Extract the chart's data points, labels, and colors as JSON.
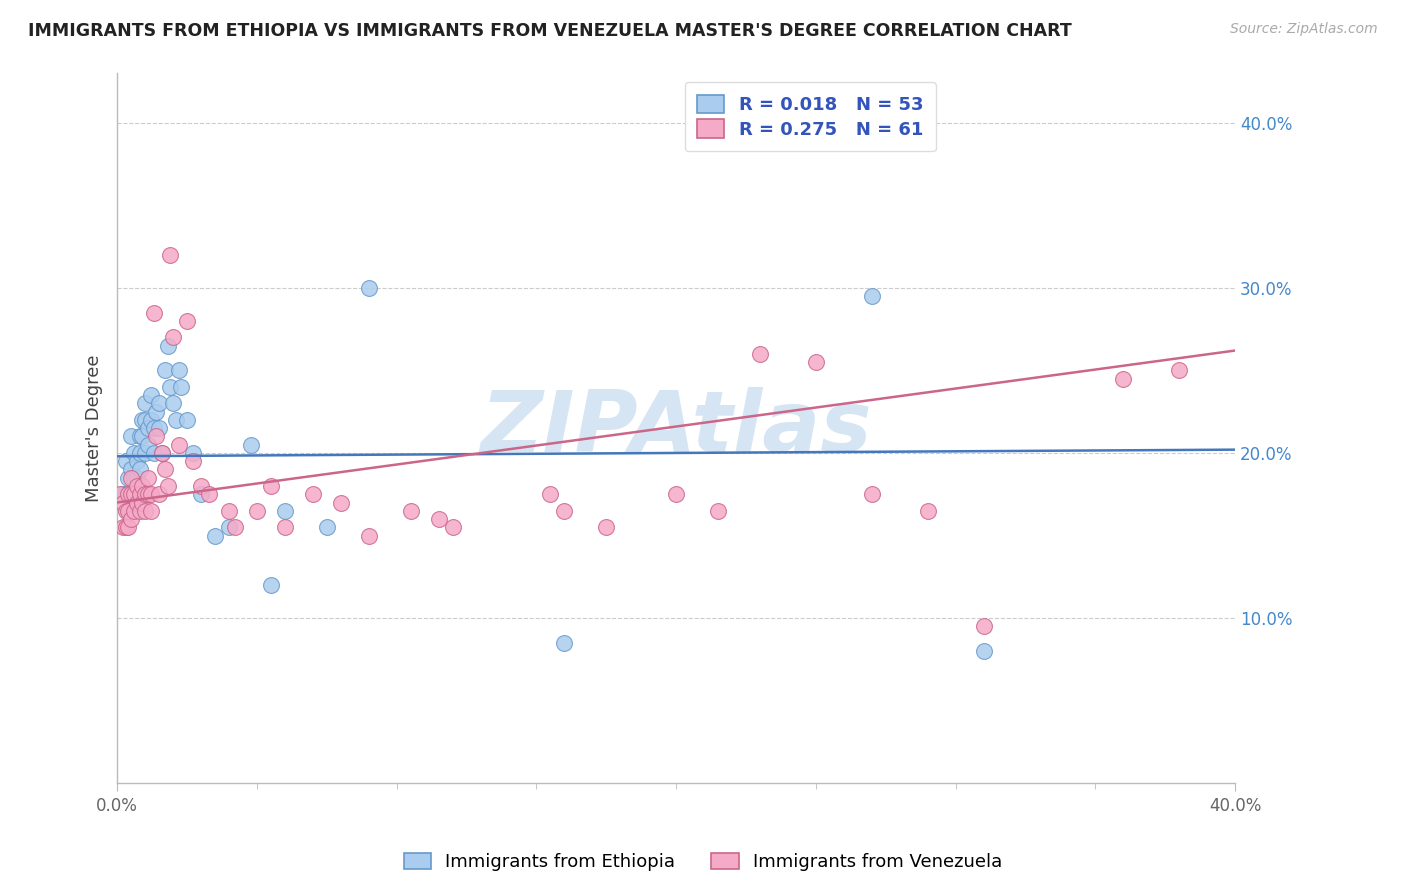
{
  "title": "IMMIGRANTS FROM ETHIOPIA VS IMMIGRANTS FROM VENEZUELA MASTER'S DEGREE CORRELATION CHART",
  "source": "Source: ZipAtlas.com",
  "ylabel": "Master's Degree",
  "xlim": [
    0.0,
    0.4
  ],
  "ylim": [
    0.0,
    0.43
  ],
  "ytick_vals": [
    0.1,
    0.2,
    0.3,
    0.4
  ],
  "ytick_labels": [
    "10.0%",
    "20.0%",
    "30.0%",
    "40.0%"
  ],
  "xtick_vals": [
    0.0,
    0.4
  ],
  "xtick_labels": [
    "0.0%",
    "40.0%"
  ],
  "legend_r1": "0.018",
  "legend_n1": "53",
  "legend_r2": "0.275",
  "legend_n2": "61",
  "label_ethiopia": "Immigrants from Ethiopia",
  "label_venezuela": "Immigrants from Venezuela",
  "color_ethiopia_fill": "#aaccee",
  "color_ethiopia_edge": "#6699cc",
  "color_venezuela_fill": "#f5aac8",
  "color_venezuela_edge": "#cc6688",
  "line_color_ethiopia": "#4477bb",
  "line_color_venezuela": "#cc6688",
  "watermark": "ZIPAtlas",
  "watermark_color": "#c8ddf0",
  "background": "#ffffff",
  "grid_color": "#cccccc",
  "title_color": "#222222",
  "source_color": "#aaaaaa",
  "legend_text_color": "#3355bb",
  "axis_label_color": "#444444",
  "tick_color_y": "#4488cc",
  "tick_color_x": "#666666",
  "eth_trendline_start_y": 0.198,
  "eth_trendline_end_y": 0.202,
  "ven_trendline_start_y": 0.17,
  "ven_trendline_end_y": 0.262,
  "eth_x": [
    0.002,
    0.003,
    0.003,
    0.004,
    0.004,
    0.004,
    0.005,
    0.005,
    0.005,
    0.006,
    0.006,
    0.006,
    0.007,
    0.007,
    0.007,
    0.008,
    0.008,
    0.008,
    0.009,
    0.009,
    0.01,
    0.01,
    0.01,
    0.011,
    0.011,
    0.012,
    0.012,
    0.013,
    0.013,
    0.014,
    0.015,
    0.015,
    0.016,
    0.017,
    0.018,
    0.019,
    0.02,
    0.021,
    0.022,
    0.023,
    0.025,
    0.027,
    0.03,
    0.035,
    0.04,
    0.048,
    0.055,
    0.06,
    0.075,
    0.09,
    0.16,
    0.27,
    0.31
  ],
  "eth_y": [
    0.175,
    0.195,
    0.175,
    0.165,
    0.185,
    0.175,
    0.21,
    0.19,
    0.175,
    0.2,
    0.185,
    0.175,
    0.195,
    0.185,
    0.175,
    0.21,
    0.2,
    0.19,
    0.22,
    0.21,
    0.23,
    0.22,
    0.2,
    0.215,
    0.205,
    0.235,
    0.22,
    0.215,
    0.2,
    0.225,
    0.23,
    0.215,
    0.2,
    0.25,
    0.265,
    0.24,
    0.23,
    0.22,
    0.25,
    0.24,
    0.22,
    0.2,
    0.175,
    0.15,
    0.155,
    0.205,
    0.12,
    0.165,
    0.155,
    0.3,
    0.085,
    0.295,
    0.08
  ],
  "ven_x": [
    0.001,
    0.002,
    0.002,
    0.003,
    0.003,
    0.004,
    0.004,
    0.004,
    0.005,
    0.005,
    0.005,
    0.006,
    0.006,
    0.007,
    0.007,
    0.008,
    0.008,
    0.009,
    0.009,
    0.01,
    0.01,
    0.011,
    0.011,
    0.012,
    0.012,
    0.013,
    0.014,
    0.015,
    0.016,
    0.017,
    0.018,
    0.019,
    0.02,
    0.022,
    0.025,
    0.027,
    0.03,
    0.033,
    0.04,
    0.042,
    0.05,
    0.055,
    0.06,
    0.07,
    0.08,
    0.09,
    0.105,
    0.115,
    0.12,
    0.155,
    0.16,
    0.175,
    0.2,
    0.215,
    0.23,
    0.25,
    0.27,
    0.29,
    0.31,
    0.36,
    0.38
  ],
  "ven_y": [
    0.175,
    0.17,
    0.155,
    0.165,
    0.155,
    0.175,
    0.165,
    0.155,
    0.185,
    0.175,
    0.16,
    0.175,
    0.165,
    0.18,
    0.17,
    0.175,
    0.165,
    0.18,
    0.17,
    0.175,
    0.165,
    0.185,
    0.175,
    0.165,
    0.175,
    0.285,
    0.21,
    0.175,
    0.2,
    0.19,
    0.18,
    0.32,
    0.27,
    0.205,
    0.28,
    0.195,
    0.18,
    0.175,
    0.165,
    0.155,
    0.165,
    0.18,
    0.155,
    0.175,
    0.17,
    0.15,
    0.165,
    0.16,
    0.155,
    0.175,
    0.165,
    0.155,
    0.175,
    0.165,
    0.26,
    0.255,
    0.175,
    0.165,
    0.095,
    0.245,
    0.25
  ]
}
